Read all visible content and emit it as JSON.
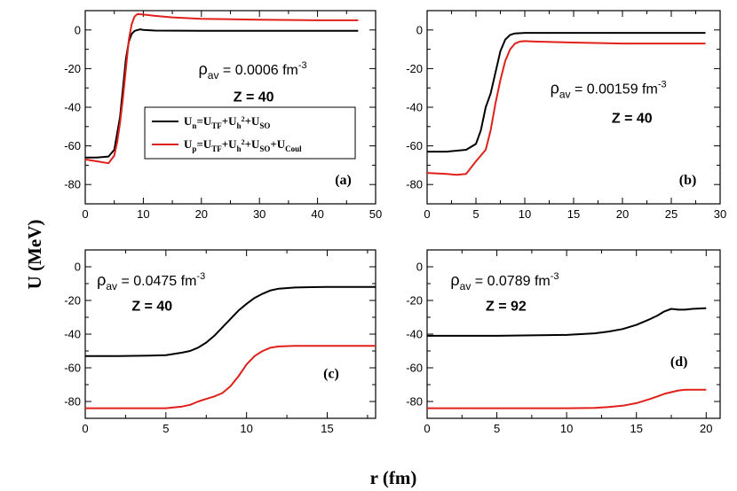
{
  "figure": {
    "xlabel": "r (fm)",
    "ylabel": "U (MeV)"
  },
  "colors": {
    "neutron": "#000000",
    "proton": "#e0201a"
  },
  "chart_data": [
    {
      "type": "line",
      "panel_label": "(a)",
      "density_label": {
        "prefix": "ρ",
        "sub": "av",
        "text": " = 0.0006 fm",
        "sup": "-3"
      },
      "z_label": "Z = 40",
      "xlim": [
        0,
        50
      ],
      "ylim": [
        -90,
        10
      ],
      "xticks": [
        0,
        10,
        20,
        30,
        40,
        50
      ],
      "yticks": [
        0,
        -20,
        -40,
        -60,
        -80
      ],
      "legend": [
        {
          "series": "neutron",
          "parts": [
            [
              "U",
              ""
            ],
            [
              "n",
              "sub"
            ],
            [
              "=U",
              ""
            ],
            [
              "TF",
              "sub"
            ],
            [
              "+U",
              ""
            ],
            [
              "h",
              "sub"
            ],
            [
              "2",
              "supsub"
            ],
            [
              "+U",
              ""
            ],
            [
              "SO",
              "sub"
            ]
          ]
        },
        {
          "series": "proton",
          "parts": [
            [
              "U",
              ""
            ],
            [
              "p",
              "sub"
            ],
            [
              "=U",
              ""
            ],
            [
              "TF",
              "sub"
            ],
            [
              "+U",
              ""
            ],
            [
              "h",
              "sub"
            ],
            [
              "2",
              "supsub"
            ],
            [
              "+U",
              ""
            ],
            [
              "SO",
              "sub"
            ],
            [
              "+U",
              ""
            ],
            [
              "Coul",
              "sub"
            ]
          ]
        }
      ],
      "series": [
        {
          "name": "neutron",
          "x": [
            0,
            2,
            4,
            5,
            6,
            6.5,
            7,
            7.5,
            8,
            8.5,
            9,
            9.5,
            10,
            12,
            20,
            30,
            40,
            47
          ],
          "y": [
            -66,
            -66,
            -65.5,
            -62,
            -45,
            -30,
            -15,
            -6,
            -2,
            -0.5,
            0,
            0.3,
            0,
            -0.3,
            -0.4,
            -0.4,
            -0.4,
            -0.4
          ]
        },
        {
          "name": "proton",
          "x": [
            0,
            2,
            4,
            5,
            5.5,
            6,
            6.5,
            7,
            7.5,
            8,
            8.5,
            9,
            10,
            12,
            15,
            20,
            30,
            40,
            47
          ],
          "y": [
            -67,
            -68,
            -69,
            -65,
            -58,
            -48,
            -35,
            -20,
            -5,
            3,
            7,
            8.2,
            8,
            7.3,
            6.5,
            5.8,
            5.3,
            5,
            5
          ]
        }
      ]
    },
    {
      "type": "line",
      "panel_label": "(b)",
      "density_label": {
        "prefix": "ρ",
        "sub": "av",
        "text": " = 0.00159 fm",
        "sup": "-3"
      },
      "z_label": "Z = 40",
      "xlim": [
        0,
        30
      ],
      "ylim": [
        -90,
        10
      ],
      "xticks": [
        0,
        5,
        10,
        15,
        20,
        25,
        30
      ],
      "yticks": [
        0,
        -20,
        -40,
        -60,
        -80
      ],
      "series": [
        {
          "name": "neutron",
          "x": [
            0,
            2,
            4,
            5,
            5.5,
            6,
            6.5,
            7,
            7.5,
            8,
            8.5,
            9,
            10,
            12,
            15,
            20,
            25,
            28.5
          ],
          "y": [
            -63,
            -63,
            -62,
            -59,
            -52,
            -40,
            -33,
            -22,
            -11,
            -5,
            -2.5,
            -1.8,
            -1.5,
            -1.5,
            -1.5,
            -1.5,
            -1.5,
            -1.5
          ]
        },
        {
          "name": "proton",
          "x": [
            0,
            2,
            3,
            4,
            5,
            5.5,
            6,
            6.5,
            7,
            7.5,
            8,
            8.5,
            9,
            9.5,
            10,
            11,
            15,
            20,
            25,
            28.5
          ],
          "y": [
            -74,
            -74.5,
            -75,
            -74.5,
            -68,
            -65,
            -62,
            -52,
            -38,
            -26,
            -16,
            -10,
            -7,
            -6,
            -5.8,
            -6,
            -6.5,
            -7,
            -7,
            -7
          ]
        }
      ]
    },
    {
      "type": "line",
      "panel_label": "(c)",
      "density_label": {
        "prefix": "ρ",
        "sub": "av",
        "text": " = 0.0475 fm",
        "sup": "-3"
      },
      "z_label": "Z = 40",
      "xlim": [
        0,
        18
      ],
      "ylim": [
        -90,
        10
      ],
      "xticks": [
        0,
        5,
        10,
        15
      ],
      "yticks": [
        0,
        -20,
        -40,
        -60,
        -80
      ],
      "series": [
        {
          "name": "neutron",
          "x": [
            0,
            2,
            4,
            5,
            6,
            6.5,
            7,
            7.5,
            8,
            8.5,
            9,
            9.5,
            10,
            10.5,
            11,
            11.5,
            12,
            13,
            14,
            15,
            16,
            17,
            18
          ],
          "y": [
            -53,
            -53,
            -52.8,
            -52.5,
            -51,
            -50,
            -48,
            -45,
            -41,
            -36,
            -31,
            -26,
            -22,
            -18.5,
            -16,
            -14,
            -13,
            -12.3,
            -12.1,
            -12,
            -12,
            -12,
            -12
          ]
        },
        {
          "name": "proton",
          "x": [
            0,
            2,
            4,
            5,
            6,
            6.5,
            7,
            7.5,
            8,
            8.5,
            9,
            9.5,
            10,
            10.5,
            11,
            11.5,
            12,
            13,
            14,
            15,
            16,
            17,
            18
          ],
          "y": [
            -84,
            -84,
            -84,
            -84,
            -83,
            -82,
            -80,
            -78.5,
            -77,
            -75,
            -71,
            -65,
            -58,
            -53,
            -50,
            -48,
            -47.3,
            -47,
            -47,
            -47,
            -47,
            -47,
            -47
          ]
        }
      ]
    },
    {
      "type": "line",
      "panel_label": "(d)",
      "density_label": {
        "prefix": "ρ",
        "sub": "av",
        "text": " = 0.0789 fm",
        "sup": "-3"
      },
      "z_label": "Z = 92",
      "xlim": [
        0,
        21
      ],
      "ylim": [
        -90,
        10
      ],
      "xticks": [
        0,
        5,
        10,
        15,
        20
      ],
      "yticks": [
        0,
        -20,
        -40,
        -60,
        -80
      ],
      "series": [
        {
          "name": "neutron",
          "x": [
            0,
            5,
            10,
            12,
            13,
            14,
            15,
            16,
            16.5,
            17,
            17.5,
            18,
            18.5,
            19,
            19.5,
            20
          ],
          "y": [
            -41,
            -41,
            -40.5,
            -39.5,
            -38.5,
            -37,
            -34.5,
            -31,
            -29,
            -26.5,
            -25,
            -25.5,
            -25.5,
            -25,
            -24.8,
            -24.6
          ]
        },
        {
          "name": "proton",
          "x": [
            0,
            5,
            10,
            12,
            13,
            14,
            15,
            16,
            16.5,
            17,
            17.5,
            18,
            18.5,
            19,
            19.5,
            20
          ],
          "y": [
            -84,
            -84,
            -84,
            -83.8,
            -83.3,
            -82.5,
            -81,
            -78.5,
            -77,
            -75.5,
            -74.5,
            -73.5,
            -73,
            -73,
            -73,
            -73
          ]
        }
      ]
    }
  ]
}
